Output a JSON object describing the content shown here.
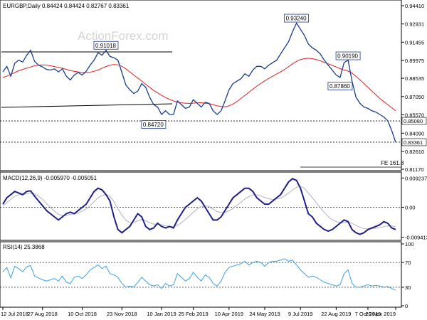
{
  "chart_data": [
    {
      "type": "line",
      "panel": "price",
      "header": "EURGBP,Daily  0.84424 0.84424 0.82767 0.83361",
      "watermark": "ActionForex.com",
      "y_ticks": [
        "0.94410",
        "0.92931",
        "0.91455",
        "0.89975",
        "0.88535",
        "0.87050",
        "0.85570",
        "0.84090",
        "0.82610",
        "0.81170"
      ],
      "ylim": [
        0.8117,
        0.9441
      ],
      "close": [
        0.8905,
        0.895,
        0.887,
        0.8975,
        0.9,
        0.8985,
        0.904,
        0.908,
        0.899,
        0.896,
        0.8945,
        0.8925,
        0.892,
        0.893,
        0.8905,
        0.893,
        0.887,
        0.884,
        0.888,
        0.89,
        0.888,
        0.891,
        0.896,
        0.9,
        0.906,
        0.904,
        0.908,
        0.903,
        0.902,
        0.9,
        0.89,
        0.88,
        0.876,
        0.873,
        0.875,
        0.881,
        0.878,
        0.87,
        0.864,
        0.862,
        0.856,
        0.859,
        0.856,
        0.856,
        0.867,
        0.864,
        0.861,
        0.862,
        0.868,
        0.865,
        0.862,
        0.866,
        0.865,
        0.859,
        0.856,
        0.859,
        0.867,
        0.876,
        0.881,
        0.883,
        0.885,
        0.889,
        0.887,
        0.892,
        0.895,
        0.895,
        0.893,
        0.896,
        0.898,
        0.9,
        0.905,
        0.91,
        0.915,
        0.923,
        0.93,
        0.925,
        0.92,
        0.913,
        0.91,
        0.908,
        0.905,
        0.9,
        0.896,
        0.892,
        0.888,
        0.886,
        0.898,
        0.9,
        0.883,
        0.87,
        0.865,
        0.862,
        0.861,
        0.859,
        0.858,
        0.856,
        0.854,
        0.851,
        0.843,
        0.8336
      ],
      "ma": [
        0.886,
        0.887,
        0.8885,
        0.89,
        0.8915,
        0.8925,
        0.8935,
        0.8945,
        0.8955,
        0.896,
        0.8962,
        0.896,
        0.8955,
        0.8948,
        0.894,
        0.8935,
        0.8925,
        0.8915,
        0.891,
        0.8905,
        0.89,
        0.89,
        0.8902,
        0.891,
        0.892,
        0.8935,
        0.8948,
        0.896,
        0.8965,
        0.8962,
        0.895,
        0.893,
        0.8905,
        0.888,
        0.8855,
        0.883,
        0.8805,
        0.878,
        0.8755,
        0.8735,
        0.8715,
        0.8698,
        0.8683,
        0.867,
        0.866,
        0.8655,
        0.8652,
        0.865,
        0.8652,
        0.8655,
        0.8655,
        0.8652,
        0.8648,
        0.864,
        0.863,
        0.8625,
        0.8622,
        0.863,
        0.8645,
        0.8665,
        0.869,
        0.8715,
        0.874,
        0.8765,
        0.879,
        0.8812,
        0.8832,
        0.8852,
        0.887,
        0.8888,
        0.8905,
        0.8925,
        0.8948,
        0.897,
        0.899,
        0.9005,
        0.9012,
        0.9015,
        0.9012,
        0.9005,
        0.8995,
        0.8982,
        0.897,
        0.8958,
        0.8945,
        0.8932,
        0.892,
        0.8912,
        0.8895,
        0.887,
        0.884,
        0.881,
        0.878,
        0.875,
        0.872,
        0.869,
        0.8665,
        0.864,
        0.8615,
        0.859
      ],
      "hlines": [
        {
          "value": 0.8508,
          "tag": "0.85080",
          "style": "dotted"
        },
        {
          "value": 0.8336,
          "tag": "0.83361",
          "style": "dotted"
        }
      ],
      "annotations": [
        {
          "label": "0.91018",
          "i": 26,
          "y": 0.912
        },
        {
          "label": "0.93240",
          "i": 74,
          "y": 0.934
        },
        {
          "label": "0.90190",
          "i": 87,
          "y": 0.9035
        },
        {
          "label": "0.87860",
          "i": 85,
          "y": 0.879
        },
        {
          "label": "0.84720",
          "i": 38,
          "y": 0.848
        }
      ],
      "fe_label": "FE 161.8",
      "fe_value": 0.8165
    },
    {
      "type": "line",
      "panel": "macd",
      "header": "MACD(12,26,9) -0.005970 -0.005051",
      "y_ticks": [
        "0.009237",
        "0.00",
        "-0.009413"
      ],
      "ylim": [
        -0.0095,
        0.0093
      ],
      "macd": [
        0.001,
        0.003,
        0.004,
        0.005,
        0.0045,
        0.004,
        0.005,
        0.0052,
        0.0035,
        0.002,
        0.0005,
        -0.001,
        -0.002,
        -0.003,
        -0.004,
        -0.003,
        -0.002,
        -0.0015,
        -0.002,
        -0.001,
        0.0,
        0.001,
        0.003,
        0.005,
        0.006,
        0.0055,
        0.004,
        0.002,
        -0.003,
        -0.007,
        -0.008,
        -0.007,
        -0.006,
        -0.004,
        -0.002,
        -0.003,
        -0.006,
        -0.007,
        -0.0065,
        -0.005,
        -0.006,
        -0.0065,
        -0.006,
        -0.0065,
        -0.004,
        -0.002,
        0.0,
        0.001,
        0.002,
        0.003,
        0.002,
        0.0,
        -0.002,
        -0.004,
        -0.004,
        -0.003,
        -0.001,
        0.001,
        0.003,
        0.004,
        0.005,
        0.006,
        0.006,
        0.005,
        0.003,
        0.002,
        0.001,
        0.001,
        0.002,
        0.003,
        0.004,
        0.006,
        0.008,
        0.009,
        0.0085,
        0.006,
        0.002,
        -0.002,
        -0.003,
        -0.005,
        -0.006,
        -0.007,
        -0.0075,
        -0.007,
        -0.006,
        -0.005,
        -0.004,
        -0.0045,
        -0.007,
        -0.008,
        -0.0085,
        -0.008,
        -0.007,
        -0.0065,
        -0.006,
        -0.0055,
        -0.0045,
        -0.005,
        -0.0065,
        -0.007
      ],
      "signal": [
        0.0005,
        0.0015,
        0.0025,
        0.0035,
        0.004,
        0.004,
        0.0043,
        0.0045,
        0.0042,
        0.0035,
        0.0025,
        0.0012,
        0.0,
        -0.0012,
        -0.0022,
        -0.0026,
        -0.0025,
        -0.0022,
        -0.0021,
        -0.0018,
        -0.0012,
        -0.0005,
        0.0005,
        0.0018,
        0.003,
        0.0038,
        0.004,
        0.0035,
        0.0018,
        -0.0005,
        -0.0025,
        -0.004,
        -0.0048,
        -0.0048,
        -0.0042,
        -0.0038,
        -0.0042,
        -0.0048,
        -0.0053,
        -0.0053,
        -0.0055,
        -0.0058,
        -0.006,
        -0.0061,
        -0.0057,
        -0.0049,
        -0.0038,
        -0.0027,
        -0.0015,
        -0.0005,
        0.0003,
        0.0005,
        0.0002,
        -0.0006,
        -0.0013,
        -0.0017,
        -0.0016,
        -0.0011,
        -0.0003,
        0.0006,
        0.0016,
        0.0026,
        0.0034,
        0.0039,
        0.0039,
        0.0036,
        0.0031,
        0.0027,
        0.0025,
        0.0026,
        0.0029,
        0.0036,
        0.0045,
        0.0055,
        0.0063,
        0.0066,
        0.006,
        0.0045,
        0.003,
        0.0014,
        -0.0001,
        -0.0016,
        -0.0029,
        -0.0039,
        -0.0045,
        -0.0048,
        -0.0048,
        -0.0047,
        -0.0051,
        -0.0057,
        -0.0063,
        -0.0067,
        -0.0068,
        -0.0067,
        -0.0066,
        -0.0064,
        -0.0061,
        -0.0058,
        -0.0059,
        -0.0061
      ]
    },
    {
      "type": "line",
      "panel": "rsi",
      "header": "RSI(14) 25.3868",
      "y_ticks": [
        "100",
        "70",
        "30",
        "0"
      ],
      "ylim": [
        0,
        100
      ],
      "levels": [
        70,
        30
      ],
      "rsi": [
        55,
        62,
        45,
        64,
        60,
        55,
        63,
        65,
        48,
        45,
        42,
        40,
        42,
        44,
        40,
        48,
        38,
        36,
        46,
        48,
        44,
        50,
        58,
        62,
        66,
        60,
        64,
        52,
        50,
        46,
        36,
        30,
        32,
        30,
        38,
        46,
        40,
        34,
        32,
        34,
        28,
        36,
        32,
        34,
        52,
        46,
        40,
        44,
        54,
        46,
        40,
        50,
        46,
        36,
        32,
        40,
        54,
        62,
        64,
        66,
        68,
        72,
        66,
        70,
        72,
        70,
        64,
        70,
        72,
        72,
        74,
        76,
        72,
        74,
        66,
        58,
        52,
        46,
        48,
        46,
        42,
        38,
        36,
        34,
        32,
        34,
        52,
        58,
        36,
        30,
        30,
        32,
        34,
        32,
        33,
        32,
        30,
        31,
        28,
        25
      ],
      "x_ticks": [
        {
          "label": "12 Jul 2018",
          "i": 0
        },
        {
          "label": "27 Aug 2018",
          "i": 10
        },
        {
          "label": "10 Oct 2018",
          "i": 20
        },
        {
          "label": "23 Nov 2018",
          "i": 30
        },
        {
          "label": "10 Jan 2019",
          "i": 40
        },
        {
          "label": "25 Feb 2019",
          "i": 48
        },
        {
          "label": "10 Apr 2019",
          "i": 57
        },
        {
          "label": "24 May 2019",
          "i": 66
        },
        {
          "label": "9 Jul 2019",
          "i": 75
        },
        {
          "label": "22 Aug 2019",
          "i": 84
        },
        {
          "label": "7 Oct 2019",
          "i": 92
        },
        {
          "label": "20 Nov 2019",
          "i": 99
        }
      ]
    }
  ],
  "colors": {
    "price": "#1a3c8c",
    "ma": "#e02020",
    "macd": "#1f1f8c",
    "signal": "#b0b0c8",
    "rsi": "#3aa0e8",
    "grid": "#000000",
    "label_bg": "#ffffff",
    "label_border": "#1a3c8c"
  }
}
